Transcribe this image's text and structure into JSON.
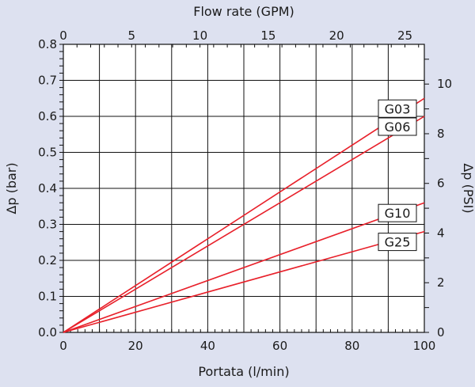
{
  "chart_data": {
    "type": "line",
    "x_bottom": {
      "label": "Portata (l/min)",
      "range": [
        0,
        100
      ],
      "ticks": [
        0,
        20,
        40,
        60,
        80,
        100
      ],
      "gridlines": [
        0,
        10,
        20,
        30,
        40,
        50,
        60,
        70,
        80,
        90,
        100
      ]
    },
    "x_top": {
      "label": "Flow rate (GPM)",
      "range": [
        0,
        26.42
      ],
      "ticks": [
        0,
        5,
        10,
        15,
        20,
        25
      ]
    },
    "y_left": {
      "label": "Δp (bar)",
      "range": [
        0,
        0.8
      ],
      "ticks": [
        0.0,
        0.1,
        0.2,
        0.3,
        0.4,
        0.5,
        0.6,
        0.7,
        0.8
      ],
      "tick_labels": [
        "0.0",
        "0.1",
        "0.2",
        "0.3",
        "0.4",
        "0.5",
        "0.6",
        "0.7",
        "0.8"
      ]
    },
    "y_right": {
      "label": "Δp (PSI)",
      "range": [
        0,
        11.6
      ],
      "ticks": [
        0,
        2,
        4,
        6,
        8,
        10
      ]
    },
    "grid": true,
    "line_color": "#e8202a",
    "series": [
      {
        "name": "G03",
        "x": [
          0,
          100
        ],
        "y": [
          0,
          0.65
        ]
      },
      {
        "name": "G06",
        "x": [
          0,
          100
        ],
        "y": [
          0,
          0.6
        ]
      },
      {
        "name": "G10",
        "x": [
          0,
          100
        ],
        "y": [
          0,
          0.36
        ]
      },
      {
        "name": "G25",
        "x": [
          0,
          100
        ],
        "y": [
          0,
          0.28
        ]
      }
    ]
  }
}
